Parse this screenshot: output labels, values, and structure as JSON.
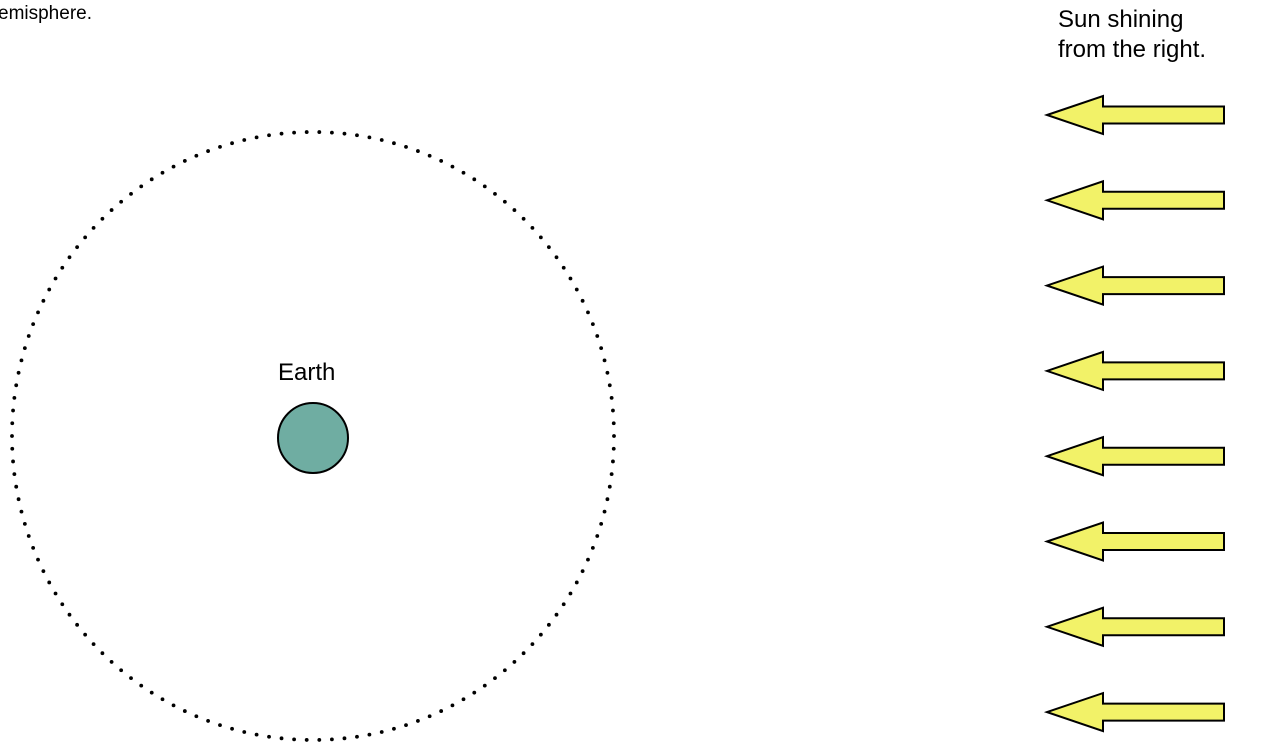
{
  "captions": {
    "top_left": "emisphere.",
    "sun_line1": "Sun shining",
    "sun_line2": "from the right."
  },
  "earth": {
    "label": "Earth",
    "fill_color": "#6fada2",
    "stroke_color": "#000000"
  },
  "orbit": {
    "style": "dotted",
    "color": "#000000"
  },
  "sun_rays": {
    "count": 8,
    "direction": "left",
    "fill_color": "#f2f268",
    "stroke_color": "#000000"
  }
}
